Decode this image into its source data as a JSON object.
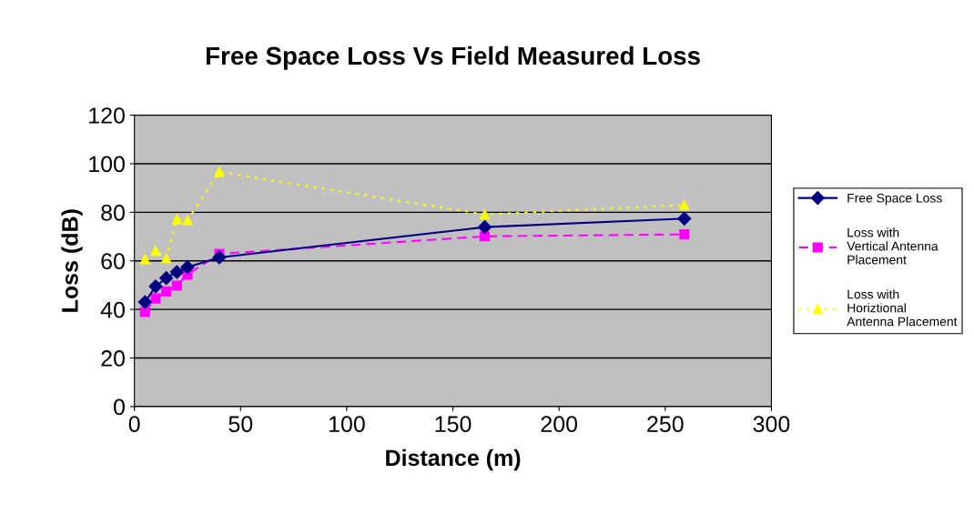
{
  "chart_data": {
    "type": "line",
    "title": "Free Space Loss Vs Field Measured Loss",
    "xlabel": "Distance (m)",
    "ylabel": "Loss (dB)",
    "x": [
      5,
      10,
      15,
      20,
      25,
      40,
      165,
      259
    ],
    "series": [
      {
        "name": "Free Space Loss",
        "color": "#000080",
        "marker": "diamond",
        "line_style": "solid",
        "values": [
          43.0,
          49.5,
          52.9,
          55.4,
          57.4,
          61.4,
          73.9,
          77.4
        ]
      },
      {
        "name": "Loss with Vertical Antenna Placement",
        "color": "#ff00ff",
        "marker": "square",
        "line_style": "dashed",
        "values": [
          38.9,
          44.5,
          47.4,
          49.8,
          54.3,
          62.9,
          70.1,
          70.9
        ]
      },
      {
        "name": "Loss with Horiztional Antenna Placement",
        "color": "#ffff00",
        "marker": "triangle",
        "line_style": "dotted",
        "values": [
          60.7,
          64.1,
          61.1,
          77.1,
          76.8,
          96.6,
          79.1,
          83.0
        ]
      }
    ],
    "xlim": [
      0,
      300
    ],
    "xticks": [
      0,
      50,
      100,
      150,
      200,
      250,
      300
    ],
    "ylim": [
      0,
      120
    ],
    "yticks": [
      0,
      20,
      40,
      60,
      80,
      100,
      120
    ],
    "grid": "y",
    "legend": "right"
  }
}
